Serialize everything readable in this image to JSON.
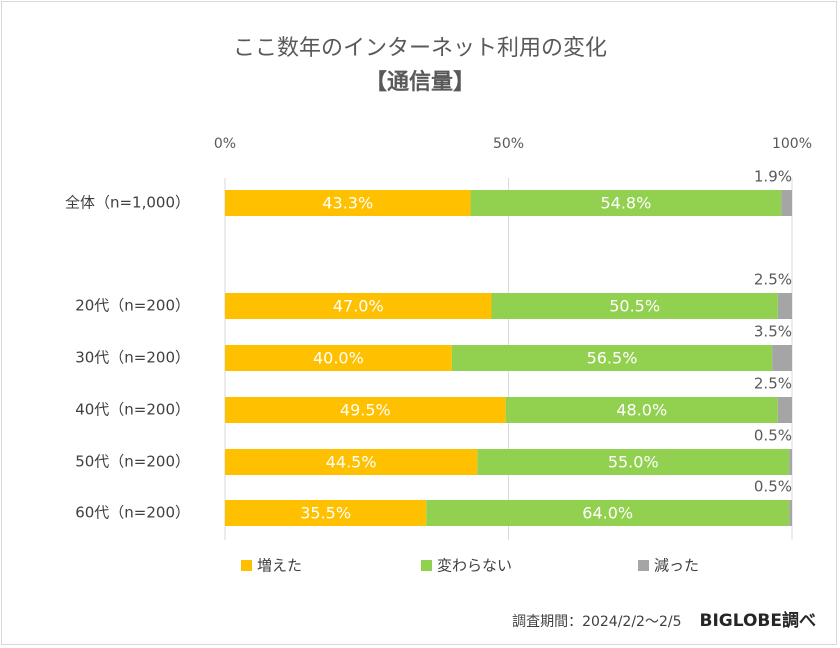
{
  "chart_data": {
    "type": "bar",
    "orientation": "horizontal",
    "stacked": true,
    "title": "ここ数年のインターネット利用の変化",
    "subtitle": "【通信量】",
    "x_ticks": [
      "0%",
      "50%",
      "100%"
    ],
    "xlim": [
      0,
      100
    ],
    "grid": true,
    "legend_position": "bottom",
    "categories": [
      "全体（n=1,000）",
      "20代（n=200）",
      "30代（n=200）",
      "40代（n=200）",
      "50代（n=200）",
      "60代（n=200）"
    ],
    "series": [
      {
        "name": "増えた",
        "color": "#FFC000",
        "values": [
          43.3,
          47.0,
          40.0,
          49.5,
          44.5,
          35.5
        ],
        "labels": [
          "43.3%",
          "47.0%",
          "40.0%",
          "49.5%",
          "44.5%",
          "35.5%"
        ]
      },
      {
        "name": "変わらない",
        "color": "#92D050",
        "values": [
          54.8,
          50.5,
          56.5,
          48.0,
          55.0,
          64.0
        ],
        "labels": [
          "54.8%",
          "50.5%",
          "56.5%",
          "48.0%",
          "55.0%",
          "64.0%"
        ]
      },
      {
        "name": "減った",
        "color": "#A5A5A5",
        "values": [
          1.9,
          2.5,
          3.5,
          2.5,
          0.5,
          0.5
        ],
        "labels": [
          "1.9%",
          "2.5%",
          "3.5%",
          "2.5%",
          "0.5%",
          "0.5%"
        ]
      }
    ]
  },
  "source": {
    "period": "調査期間：2024/2/2〜2/5",
    "brand": "BIGLOBE調べ"
  }
}
